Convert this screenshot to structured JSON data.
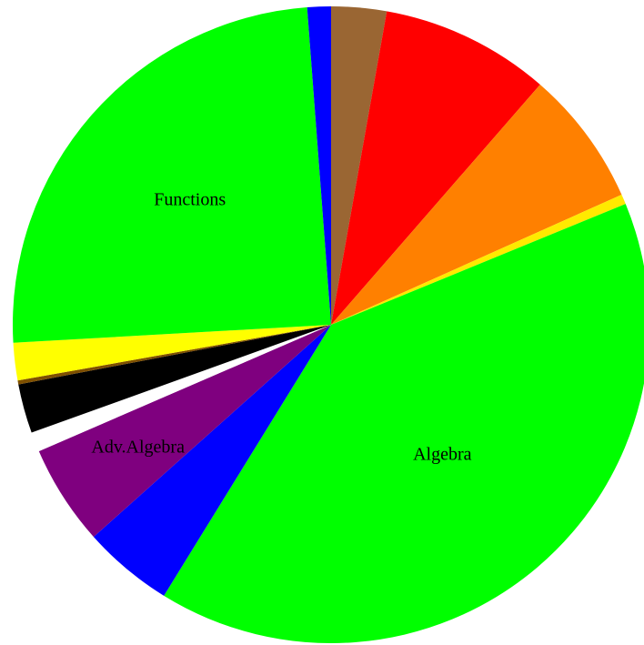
{
  "chart_data": {
    "type": "pie",
    "title": "",
    "start_angle_deg": 0,
    "direction": "clockwise",
    "slices": [
      {
        "label": "",
        "value": 2.8,
        "color": "#9A6633",
        "show_label": false
      },
      {
        "label": "",
        "value": 8.6,
        "color": "#FF0000",
        "show_label": false
      },
      {
        "label": "",
        "value": 6.9,
        "color": "#FF8000",
        "show_label": false
      },
      {
        "label": "",
        "value": 0.5,
        "color": "#FFEA00",
        "show_label": false
      },
      {
        "label": "Algebra",
        "value": 40.0,
        "color": "#00FF00",
        "show_label": true
      },
      {
        "label": "",
        "value": 4.6,
        "color": "#0000FF",
        "show_label": false
      },
      {
        "label": "Adv.Algebra",
        "value": 5.1,
        "color": "#7F007F",
        "show_label": true
      },
      {
        "label": "",
        "value": 1.0,
        "color": "#FFFFFF",
        "show_label": false
      },
      {
        "label": "",
        "value": 2.5,
        "color": "#000000",
        "show_label": false
      },
      {
        "label": "",
        "value": 0.2,
        "color": "#7F5000",
        "show_label": false
      },
      {
        "label": "",
        "value": 1.9,
        "color": "#FFFF00",
        "show_label": false
      },
      {
        "label": "Functions",
        "value": 24.7,
        "color": "#00FF00",
        "show_label": true
      },
      {
        "label": "",
        "value": 1.2,
        "color": "#0000FF",
        "show_label": false
      }
    ]
  }
}
